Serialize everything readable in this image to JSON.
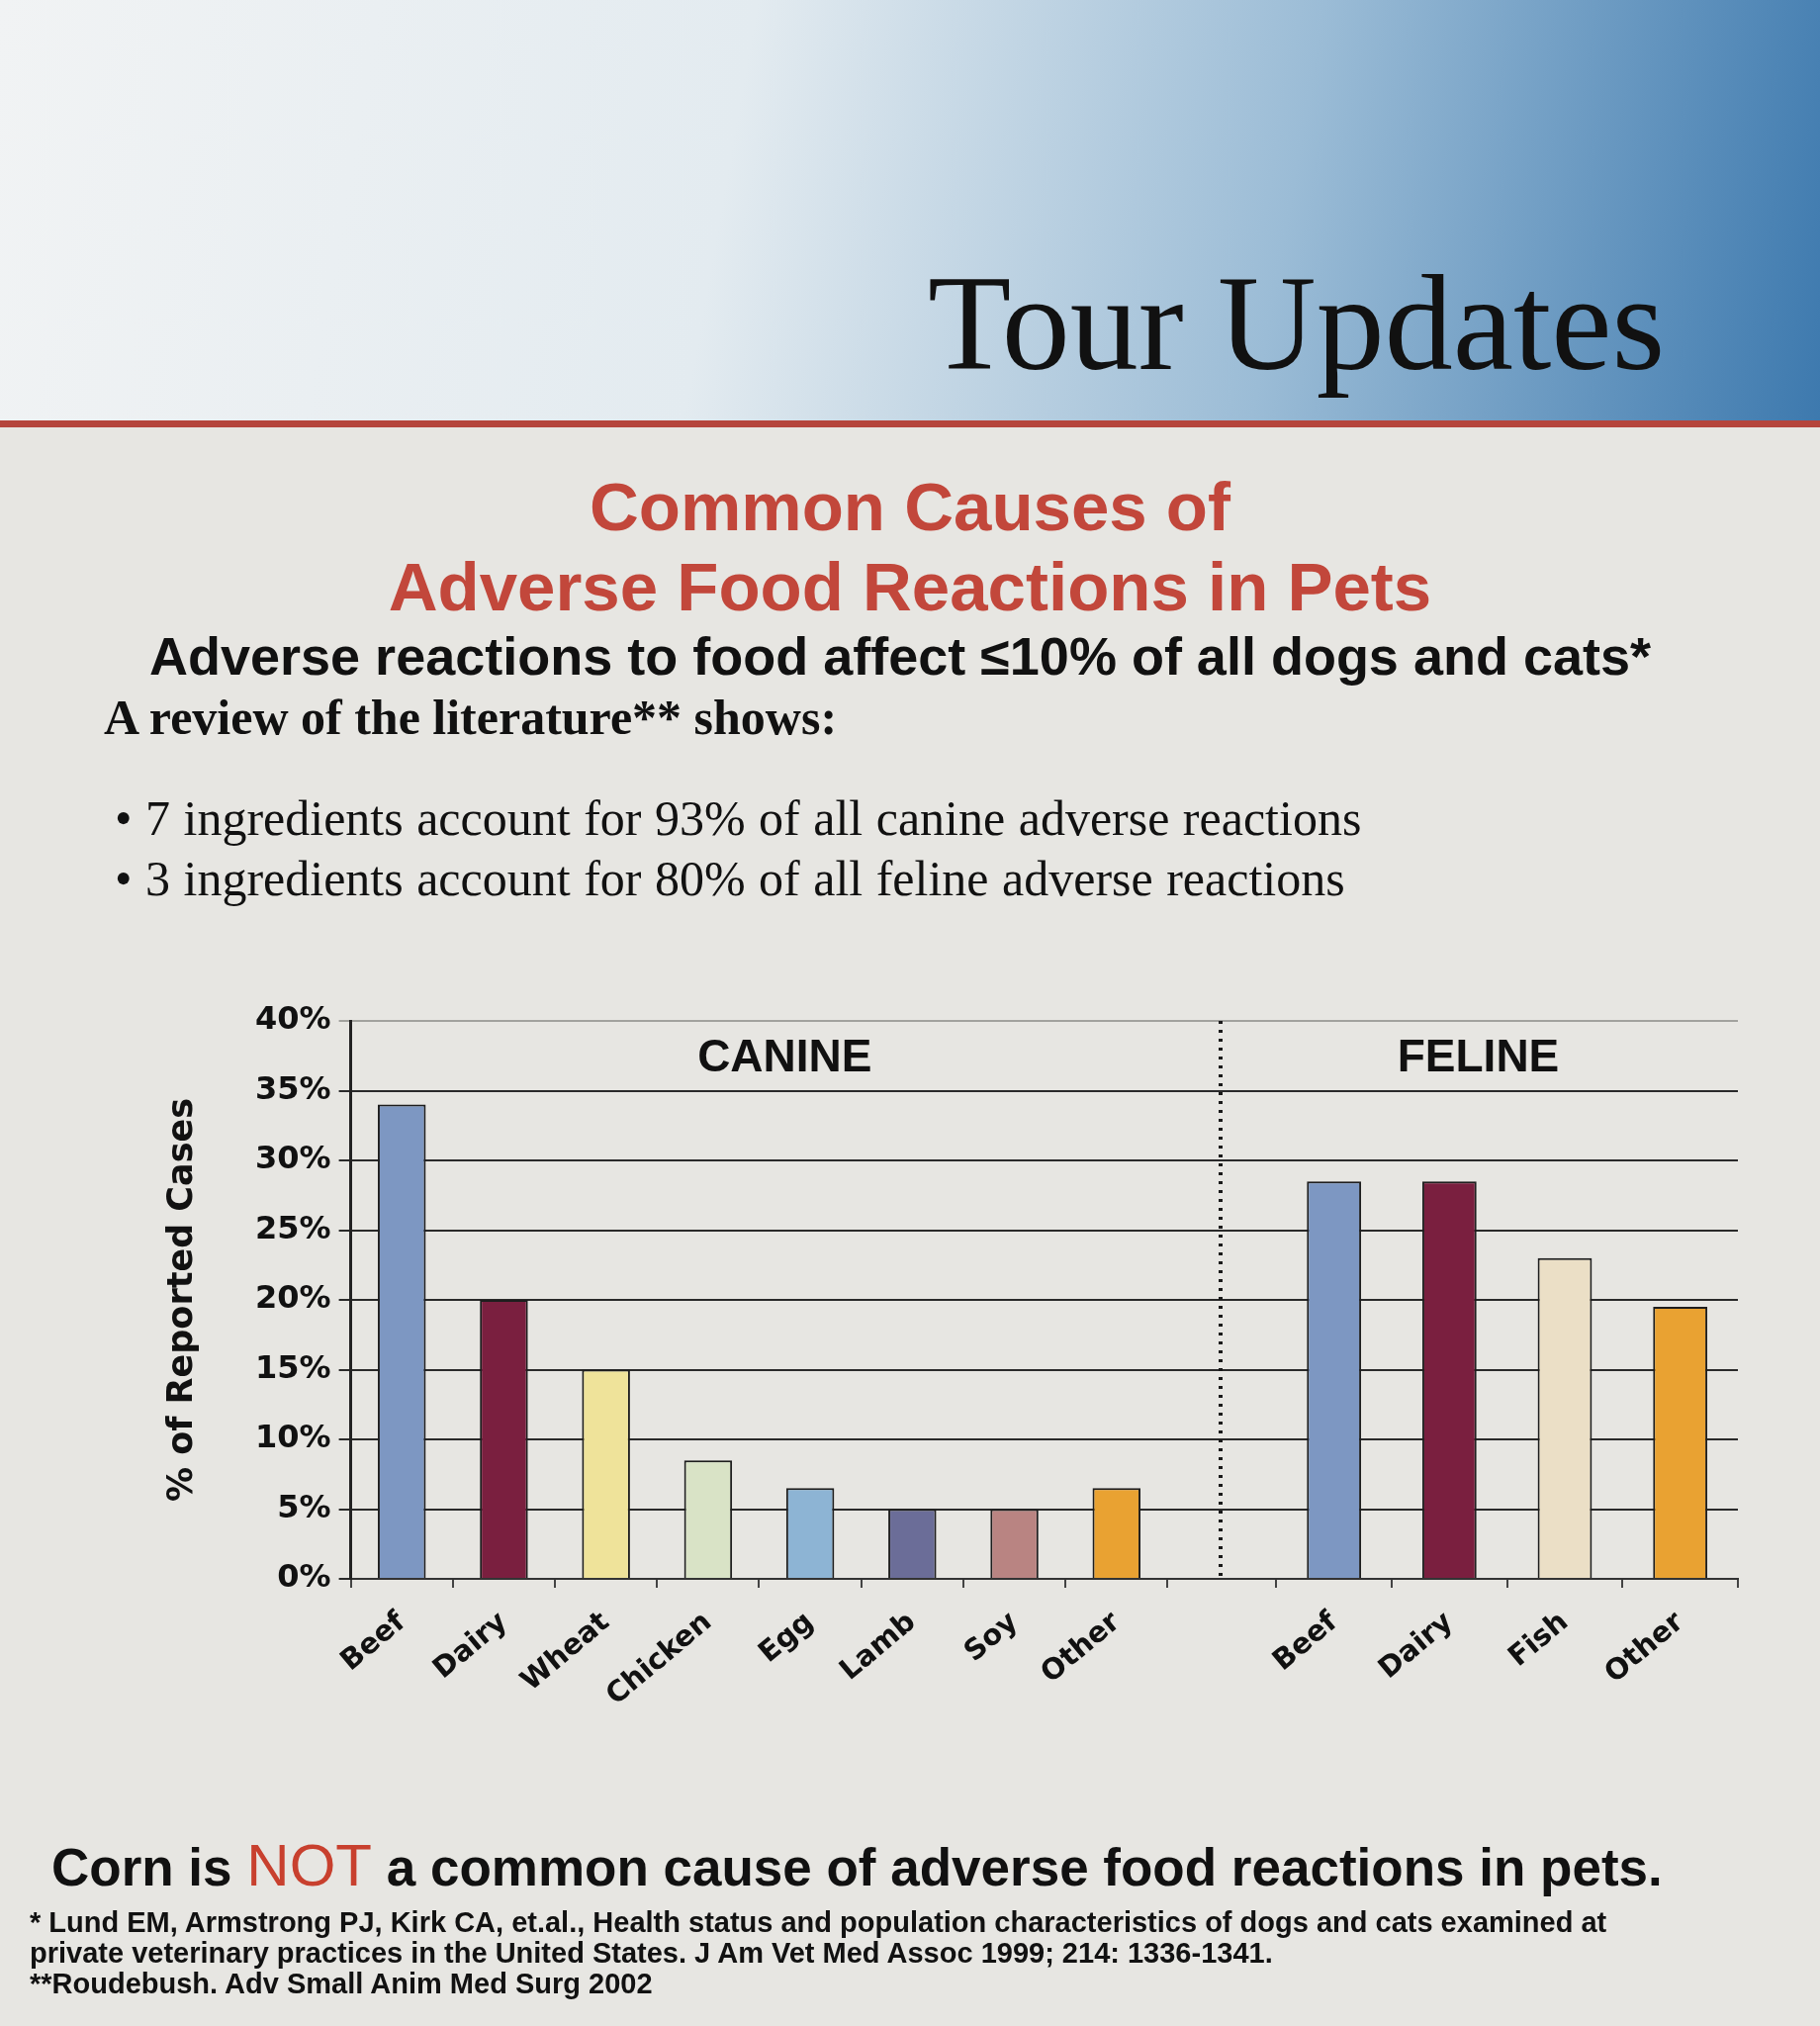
{
  "chart_data": [
    {
      "type": "other",
      "title": "Common Causes of\nAdverse Food Reactions in Pets",
      "subtitle": "Adverse reactions to food affect ≤10% of all dogs and cats*",
      "annotations": [
        "Tour Updates",
        "A review of the literature** shows:",
        "• 7 ingredients account for 93% of all canine adverse reactions",
        "• 3 ingredients account for 80% of all feline adverse reactions"
      ]
    },
    {
      "type": "bar",
      "title": "CANINE",
      "ylabel": "% of Reported Cases",
      "categories": [
        "Beef",
        "Dairy",
        "Wheat",
        "Chicken",
        "Egg",
        "Lamb",
        "Soy",
        "Other"
      ],
      "values": [
        34,
        20,
        15,
        8.5,
        6.5,
        5,
        5,
        6.5
      ],
      "colors": [
        "#7d97c2",
        "#7a1f3f",
        "#efe39a",
        "#d9e3c6",
        "#8db4d4",
        "#6b6d98",
        "#b98482",
        "#e9a232"
      ],
      "ylim": [
        0,
        40
      ],
      "yticks": [
        {
          "value": 0,
          "label": "0%"
        },
        {
          "value": 5,
          "label": "5%"
        },
        {
          "value": 10,
          "label": "10%"
        },
        {
          "value": 15,
          "label": "15%"
        },
        {
          "value": 20,
          "label": "20%"
        },
        {
          "value": 25,
          "label": "25%"
        },
        {
          "value": 30,
          "label": "30%"
        },
        {
          "value": 35,
          "label": "35%"
        },
        {
          "value": 40,
          "label": "40%"
        }
      ],
      "grid": "y"
    },
    {
      "type": "bar",
      "title": "FELINE",
      "categories": [
        "Beef",
        "Dairy",
        "Fish",
        "Other"
      ],
      "values": [
        28.5,
        28.5,
        23,
        19.5
      ],
      "colors": [
        "#7d97c2",
        "#7a1f3f",
        "#ebdfc6",
        "#e9a232"
      ],
      "ylim": [
        0,
        40
      ],
      "yticks": [
        0,
        5,
        10,
        15,
        20,
        25,
        30,
        35,
        40
      ],
      "grid": "y",
      "tick_labels": "x"
    },
    {
      "type": "other",
      "annotations": [
        "Corn is",
        "NOT",
        "a common cause of adverse food reactions in pets.",
        "* Lund EM, Armstrong PJ, Kirk CA, et.al., Health status and population characteristics of dogs and cats examined at private veterinary practices in the United States. J Am Vet Med Assoc 1999; 214: 1336-1341.",
        "**Roudebush. Adv Small Anim Med Surg 2002"
      ]
    }
  ]
}
